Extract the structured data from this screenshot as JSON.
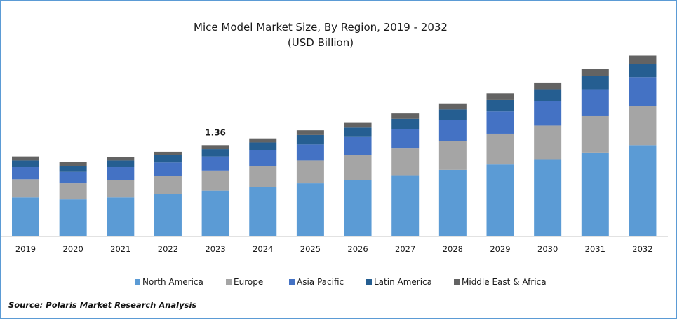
{
  "chart_data": {
    "type": "bar",
    "stacked": true,
    "title": "Mice Model Market Size, By Region, 2019 - 2032",
    "subtitle": "(USD Billion)",
    "xlabel": "",
    "ylabel": "",
    "categories": [
      "2019",
      "2020",
      "2021",
      "2022",
      "2023",
      "2024",
      "2025",
      "2026",
      "2027",
      "2028",
      "2029",
      "2030",
      "2031",
      "2032"
    ],
    "series": [
      {
        "name": "North America",
        "color": "#5b9bd5",
        "values": [
          0.58,
          0.55,
          0.58,
          0.63,
          0.68,
          0.73,
          0.79,
          0.84,
          0.91,
          0.99,
          1.07,
          1.15,
          1.25,
          1.36
        ]
      },
      {
        "name": "Europe",
        "color": "#a5a5a5",
        "values": [
          0.27,
          0.24,
          0.26,
          0.27,
          0.3,
          0.32,
          0.34,
          0.37,
          0.4,
          0.43,
          0.46,
          0.5,
          0.54,
          0.58
        ]
      },
      {
        "name": "Asia Pacific",
        "color": "#4472c4",
        "values": [
          0.18,
          0.17,
          0.19,
          0.2,
          0.21,
          0.23,
          0.24,
          0.27,
          0.29,
          0.31,
          0.33,
          0.36,
          0.4,
          0.43
        ]
      },
      {
        "name": "Latin America",
        "color": "#255e91",
        "values": [
          0.1,
          0.09,
          0.1,
          0.11,
          0.11,
          0.12,
          0.14,
          0.14,
          0.15,
          0.16,
          0.17,
          0.18,
          0.2,
          0.2
        ]
      },
      {
        "name": "Middle East & Africa",
        "color": "#636363",
        "values": [
          0.06,
          0.06,
          0.05,
          0.05,
          0.06,
          0.06,
          0.07,
          0.07,
          0.08,
          0.09,
          0.1,
          0.1,
          0.1,
          0.12
        ]
      }
    ],
    "annotations": [
      {
        "category": "2023",
        "text": "1.36"
      }
    ],
    "ylim": [
      0,
      2.8
    ],
    "grid": false,
    "legend": "bottom"
  },
  "source": "Source: Polaris  Market Research Analysis"
}
